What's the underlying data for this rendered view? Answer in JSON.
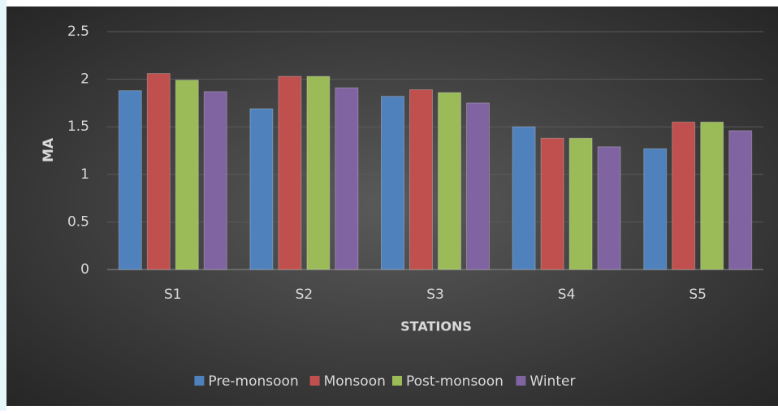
{
  "chart_data": {
    "type": "bar",
    "x_label": "STATIONS",
    "y_label": "MA",
    "categories": [
      "S1",
      "S2",
      "S3",
      "S4",
      "S5"
    ],
    "series": [
      {
        "name": "Pre-monsoon",
        "color": "#4f81bd",
        "values": [
          1.88,
          1.69,
          1.82,
          1.5,
          1.27
        ]
      },
      {
        "name": "Monsoon",
        "color": "#c0504d",
        "values": [
          2.06,
          2.03,
          1.89,
          1.38,
          1.55
        ]
      },
      {
        "name": "Post-monsoon",
        "color": "#9bbb59",
        "values": [
          1.99,
          2.03,
          1.86,
          1.38,
          1.55
        ]
      },
      {
        "name": "Winter",
        "color": "#8064a2",
        "values": [
          1.87,
          1.91,
          1.75,
          1.29,
          1.46
        ]
      }
    ],
    "ylim": [
      0,
      2.5
    ],
    "yticks": [
      0,
      0.5,
      1,
      1.5,
      2,
      2.5
    ],
    "grid": true,
    "legend": "bottom"
  }
}
